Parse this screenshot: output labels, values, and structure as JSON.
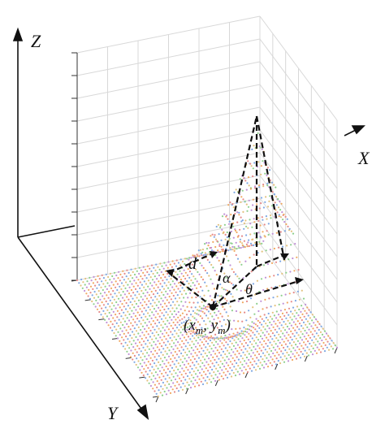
{
  "axes": {
    "z": "Z",
    "x": "X",
    "y": "Y"
  },
  "annotations": {
    "d": "d",
    "alpha": "α",
    "theta": "θ",
    "point": [
      "(",
      "x",
      "m",
      ", ",
      "y",
      "m",
      ")"
    ]
  }
}
